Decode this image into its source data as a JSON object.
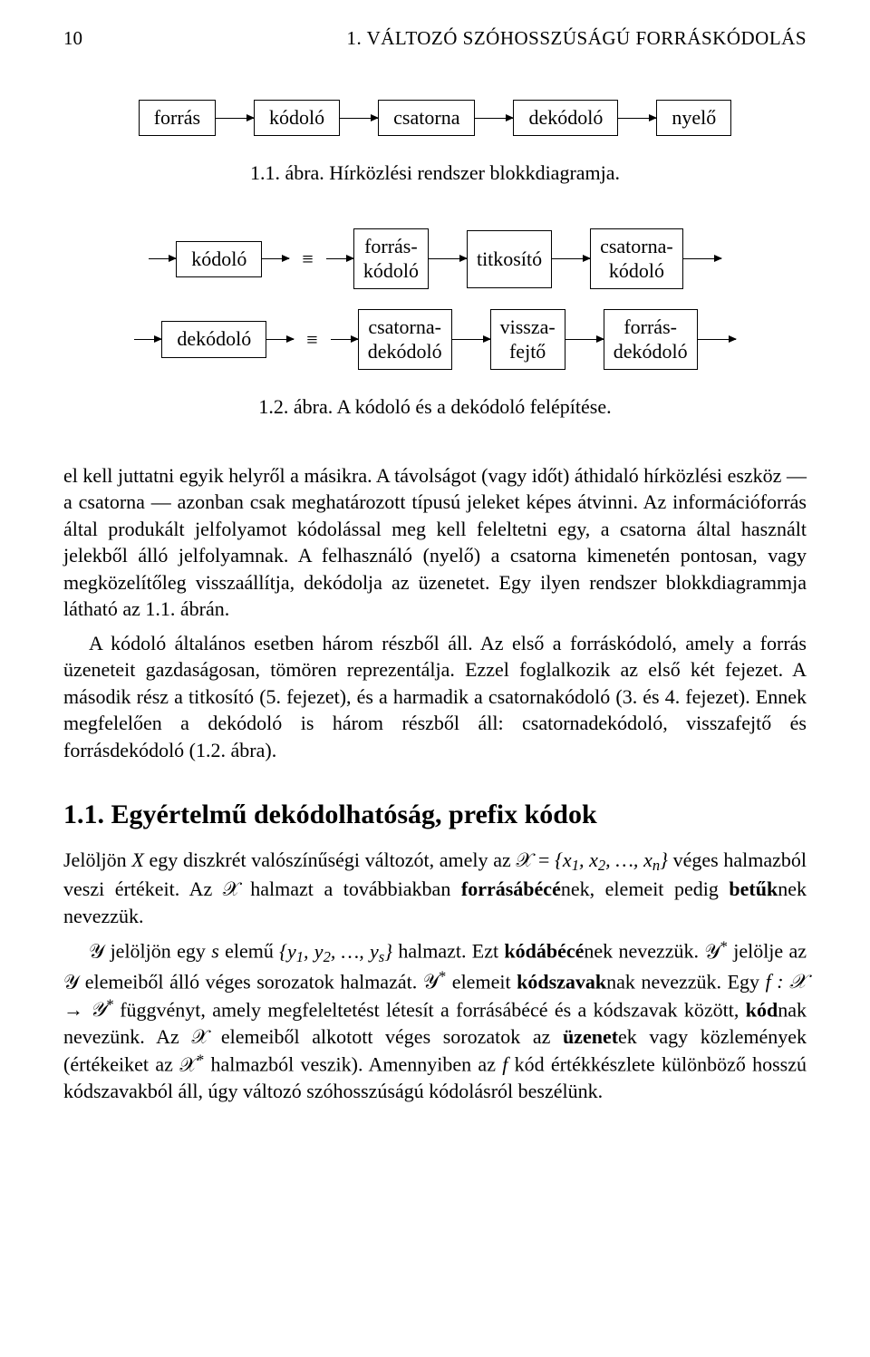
{
  "header": {
    "page_number": "10",
    "running_title": "1. VÁLTOZÓ SZÓHOSSZÚSÁGÚ FORRÁSKÓDOLÁS"
  },
  "fig1": {
    "nodes": [
      "forrás",
      "kódoló",
      "csatorna",
      "dekódoló",
      "nyelő"
    ],
    "caption": "1.1. ábra. Hírközlési rendszer blokkdiagramja.",
    "arrow_len": 42,
    "box_border": "#000000"
  },
  "fig2": {
    "row1_left": "kódoló",
    "row1_eq": "≡",
    "row1_nodes": [
      {
        "l1": "forrás-",
        "l2": "kódoló"
      },
      {
        "l1": "titkosító",
        "l2": ""
      },
      {
        "l1": "csatorna-",
        "l2": "kódoló"
      }
    ],
    "row2_left": "dekódoló",
    "row2_eq": "≡",
    "row2_nodes": [
      {
        "l1": "csatorna-",
        "l2": "dekódoló"
      },
      {
        "l1": "vissza-",
        "l2": "fejtő"
      },
      {
        "l1": "forrás-",
        "l2": "dekódoló"
      }
    ],
    "caption": "1.2. ábra. A kódoló és a dekódoló felépítése.",
    "arrow_len": 42
  },
  "para1": "el kell juttatni egyik helyről a másikra. A távolságot (vagy időt) áthidaló hírközlési eszköz — a csatorna — azonban csak meghatározott típusú jeleket képes átvinni. Az információforrás által produkált jelfolyamot kódolással meg kell feleltetni egy, a csatorna által használt jelekből álló jelfolyamnak. A felhasználó (nyelő) a csatorna kimenetén pontosan, vagy megközelítőleg visszaállítja, dekódolja az üzenetet. Egy ilyen rendszer blokkdiagrammja látható az 1.1. ábrán.",
  "para2": "A kódoló általános esetben három részből áll. Az első a forráskódoló, amely a forrás üzeneteit gazdaságosan, tömören reprezentálja. Ezzel foglalkozik az első két fejezet. A második rész a titkosító (5. fejezet), és a harmadik a csatornakódoló (3. és 4. fejezet). Ennek megfelelően a dekódoló is három részből áll: csatornadekódoló, visszafejtő és forrásdekódoló (1.2. ábra).",
  "section_title": "1.1.   Egyértelmű dekódolhatóság, prefix kódok",
  "p3a": "Jelöljön ",
  "p3b": " egy diszkrét valószínűségi változót, amely az ",
  "p3c": " véges halmazból veszi értékeit. Az ",
  "p3d": " halmazt a továbbiakban ",
  "term_forrasabece": "forrásábécé",
  "p3e": "nek, elemeit pedig ",
  "term_betu": "betűk",
  "p3f": "nek nevezzük.",
  "p4a": " jelöljön egy ",
  "p4b": " elemű ",
  "p4c": " halmazt. Ezt ",
  "term_kodabece": "kódábécé",
  "p4d": "nek nevezzük. ",
  "p4e": " jelölje az ",
  "p4f": " elemeiből álló véges sorozatok halmazát. ",
  "p4g": " elemeit ",
  "term_kodszavak": "kódszavak",
  "p4h": "nak nevezzük. Egy ",
  "p4i": " függvényt, amely megfeleltetést létesít a forrásábécé és a kódszavak között, ",
  "term_kod": "kód",
  "p4j": "nak nevezünk. Az ",
  "p4k": " elemeiből alkotott véges sorozatok az ",
  "term_uzenet": "üzenet",
  "p4l": "ek vagy közlemények (értékeiket az ",
  "p4m": " halmazból veszik). Amennyiben az ",
  "p4n": " kód értékkészlete különböző hosszú kódszavakból áll, úgy változó szóhosszúságú kódolásról beszélünk.",
  "sym": {
    "X": "X",
    "calX": "𝒳",
    "calY": "𝒴",
    "calYstar": "𝒴*",
    "calXstar": "𝒳*",
    "set_x": "{x₁, x₂, …, xₙ}",
    "set_y": "{y₁, y₂, …, yₛ}",
    "s": "s",
    "f": "f",
    "map": "f : 𝒳 → 𝒴*",
    "eq": " = "
  }
}
